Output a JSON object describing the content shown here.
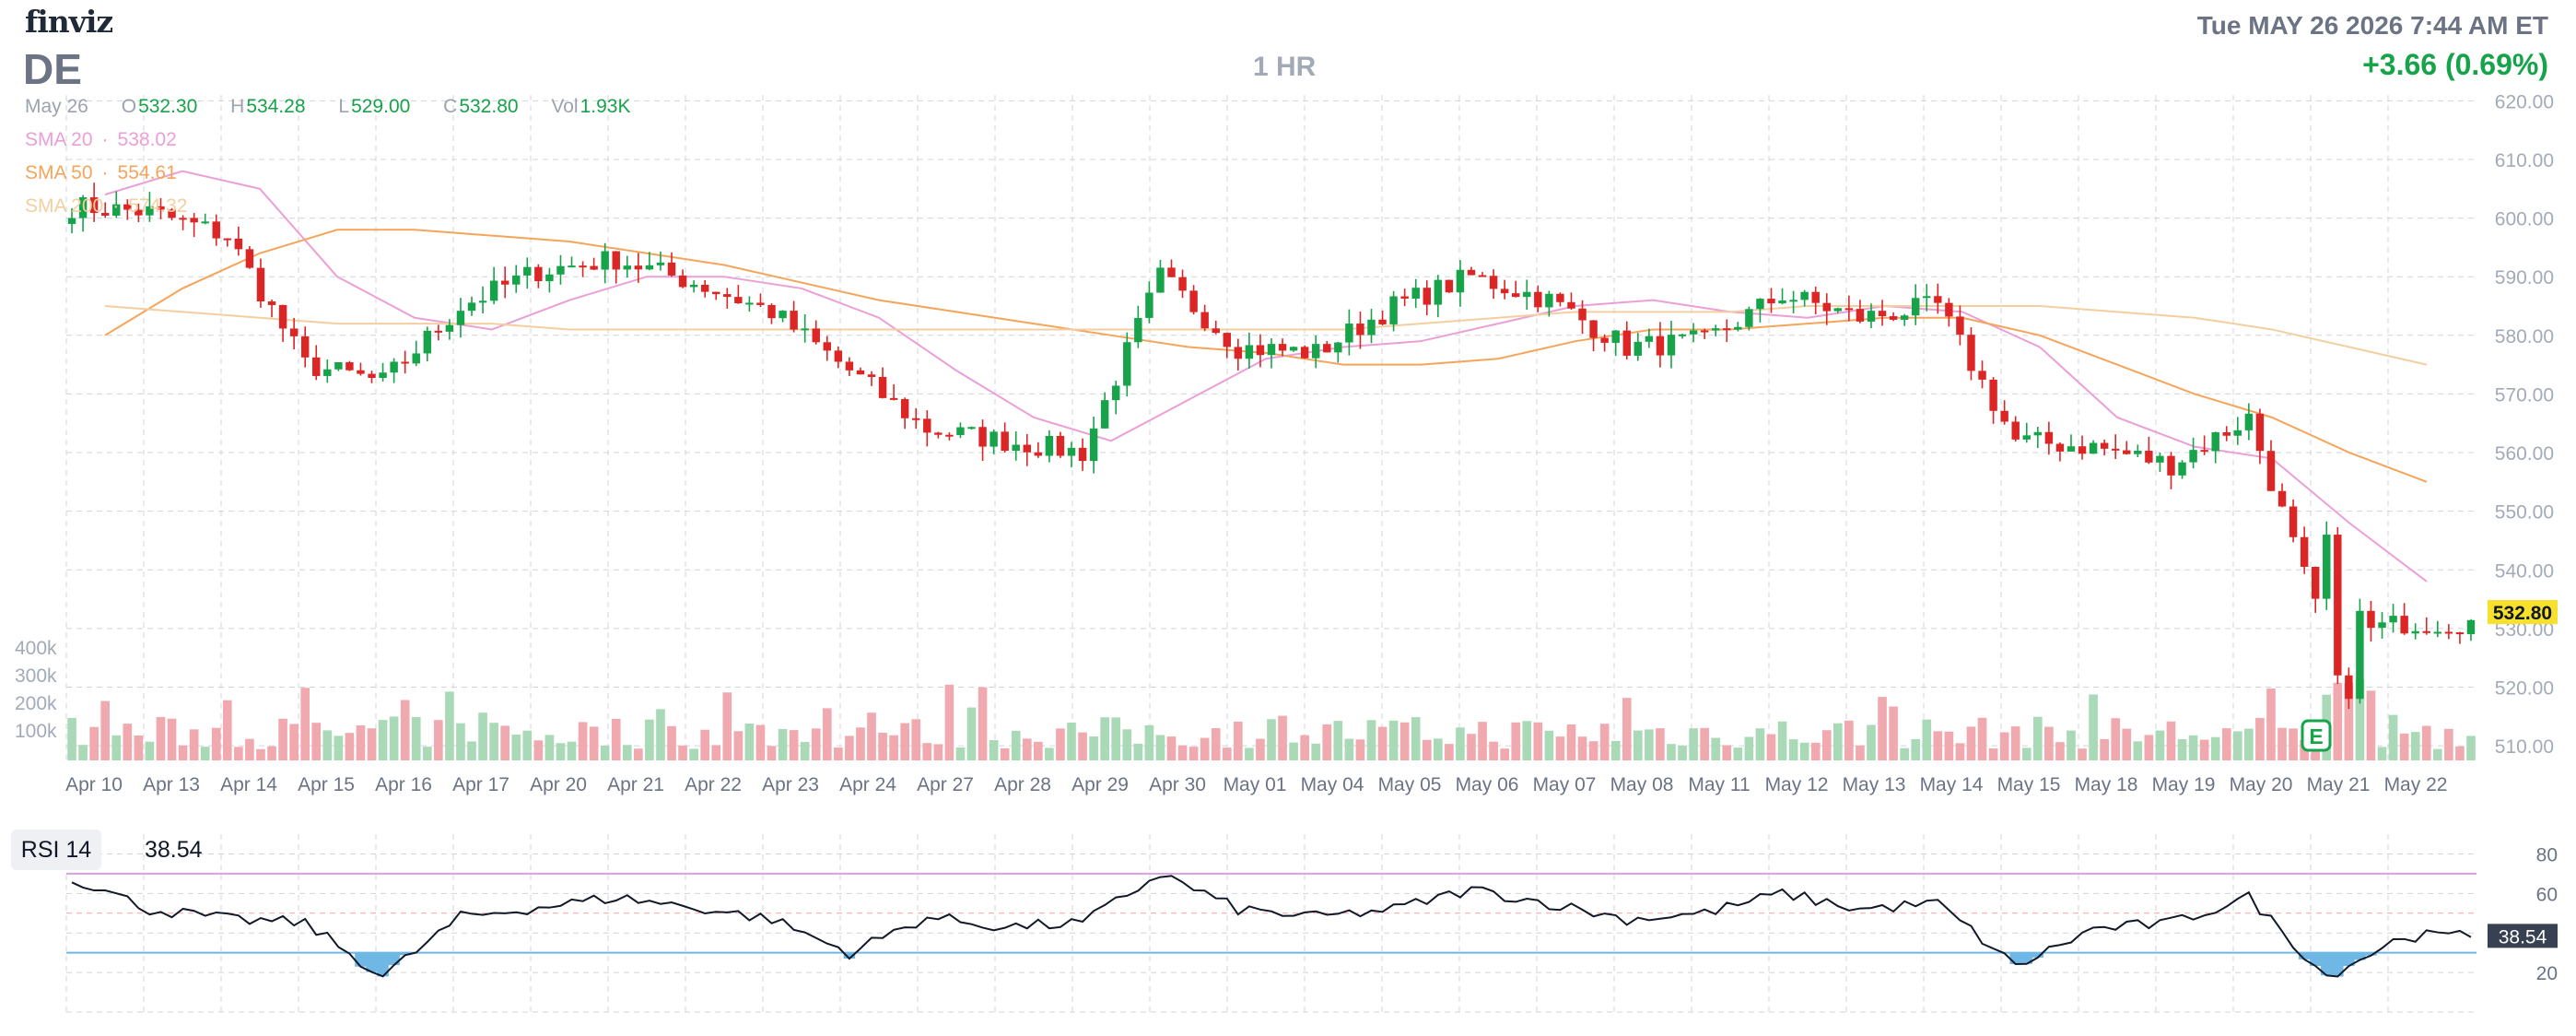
{
  "header": {
    "brand": "finviz",
    "ticker": "DE",
    "timeframe": "1 HR",
    "datetime": "Tue MAY 26 2026 7:44 AM ET",
    "change": "+3.66 (0.69%)"
  },
  "ohlc_bar": {
    "date": "May 26",
    "open_label": "O",
    "open": "532.30",
    "high_label": "H",
    "high": "534.28",
    "low_label": "L",
    "low": "529.00",
    "close_label": "C",
    "close": "532.80",
    "vol_label": "Vol",
    "vol": "1.93K"
  },
  "sma_legend": [
    {
      "label": "SMA 20",
      "value": "538.02",
      "color": "#ec9fd6"
    },
    {
      "label": "SMA 50",
      "value": "554.61",
      "color": "#f5a55b"
    },
    {
      "label": "SMA 200",
      "value": "574.32",
      "color": "#f3cfa0"
    }
  ],
  "rsi": {
    "label": "RSI 14",
    "value": "38.54",
    "tag": "38.54"
  },
  "current_price_tag": "532.80",
  "earnings_marker": "E",
  "colors": {
    "up": "#16a34a",
    "down": "#dc2626",
    "vol_up": "#a9d9b6",
    "vol_down": "#f0a9ae",
    "grid": "#d1d5db",
    "axis_text": "#a3aab7",
    "price_tag_bg": "#f7e12d",
    "rsi_line": "#111827",
    "rsi_overbought": "#d8a0e0",
    "rsi_oversold": "#6fb8e6"
  },
  "chart_data": [
    {
      "type": "candlestick",
      "title": "",
      "interval": "1 HR",
      "categories": [
        "Apr 10",
        "Apr 13",
        "Apr 14",
        "Apr 15",
        "Apr 16",
        "Apr 17",
        "Apr 20",
        "Apr 21",
        "Apr 22",
        "Apr 23",
        "Apr 24",
        "Apr 27",
        "Apr 28",
        "Apr 29",
        "Apr 30",
        "May 01",
        "May 04",
        "May 05",
        "May 06",
        "May 07",
        "May 08",
        "May 11",
        "May 12",
        "May 13",
        "May 14",
        "May 15",
        "May 18",
        "May 19",
        "May 20",
        "May 21",
        "May 22"
      ],
      "y_ticks": [
        "510.00",
        "520.00",
        "530.00",
        "540.00",
        "550.00",
        "560.00",
        "570.00",
        "580.00",
        "590.00",
        "600.00",
        "610.00",
        "620.00"
      ],
      "ylim": [
        507.5,
        621
      ],
      "volume_ticks": [
        "100k",
        "200k",
        "300k",
        "400k"
      ],
      "daily_close_approx": [
        602,
        601,
        597,
        575,
        572,
        585,
        591,
        593,
        589,
        584,
        574,
        564,
        562,
        560,
        590,
        578,
        577,
        585,
        590,
        586,
        578,
        579,
        587,
        583,
        585,
        562,
        561,
        558,
        566,
        528,
        531
      ],
      "series": [
        {
          "name": "SMA 20",
          "values": [
            604,
            608,
            605,
            590,
            583,
            581,
            586,
            590,
            590,
            588,
            583,
            574,
            566,
            562,
            569,
            576,
            578,
            579,
            582,
            585,
            586,
            584,
            583,
            585,
            584,
            578,
            566,
            561,
            559,
            548,
            538
          ]
        },
        {
          "name": "SMA 50",
          "values": [
            580,
            588,
            594,
            598,
            598,
            597,
            596,
            594,
            592,
            589,
            586,
            584,
            582,
            580,
            578,
            577,
            575,
            575,
            576,
            579,
            581,
            581,
            582,
            583,
            583,
            580,
            575,
            570,
            566,
            560,
            555
          ]
        },
        {
          "name": "SMA 200",
          "values": [
            585,
            584,
            583,
            582,
            582,
            582,
            581,
            581,
            581,
            581,
            581,
            581,
            581,
            581,
            581,
            581,
            581,
            582,
            583,
            584,
            584,
            584,
            585,
            585,
            585,
            585,
            584,
            583,
            581,
            578,
            575
          ]
        }
      ]
    },
    {
      "type": "line",
      "title": "",
      "series_label": "RSI 14",
      "y_ticks": [
        "20",
        "40",
        "60",
        "80"
      ],
      "overbought": 70,
      "oversold": 30,
      "ylim": [
        0,
        90
      ],
      "values": [
        68,
        52,
        47,
        45,
        18,
        48,
        53,
        58,
        53,
        47,
        30,
        48,
        43,
        45,
        70,
        52,
        48,
        52,
        62,
        55,
        47,
        50,
        60,
        52,
        55,
        23,
        42,
        45,
        58,
        18,
        38.54
      ]
    }
  ]
}
